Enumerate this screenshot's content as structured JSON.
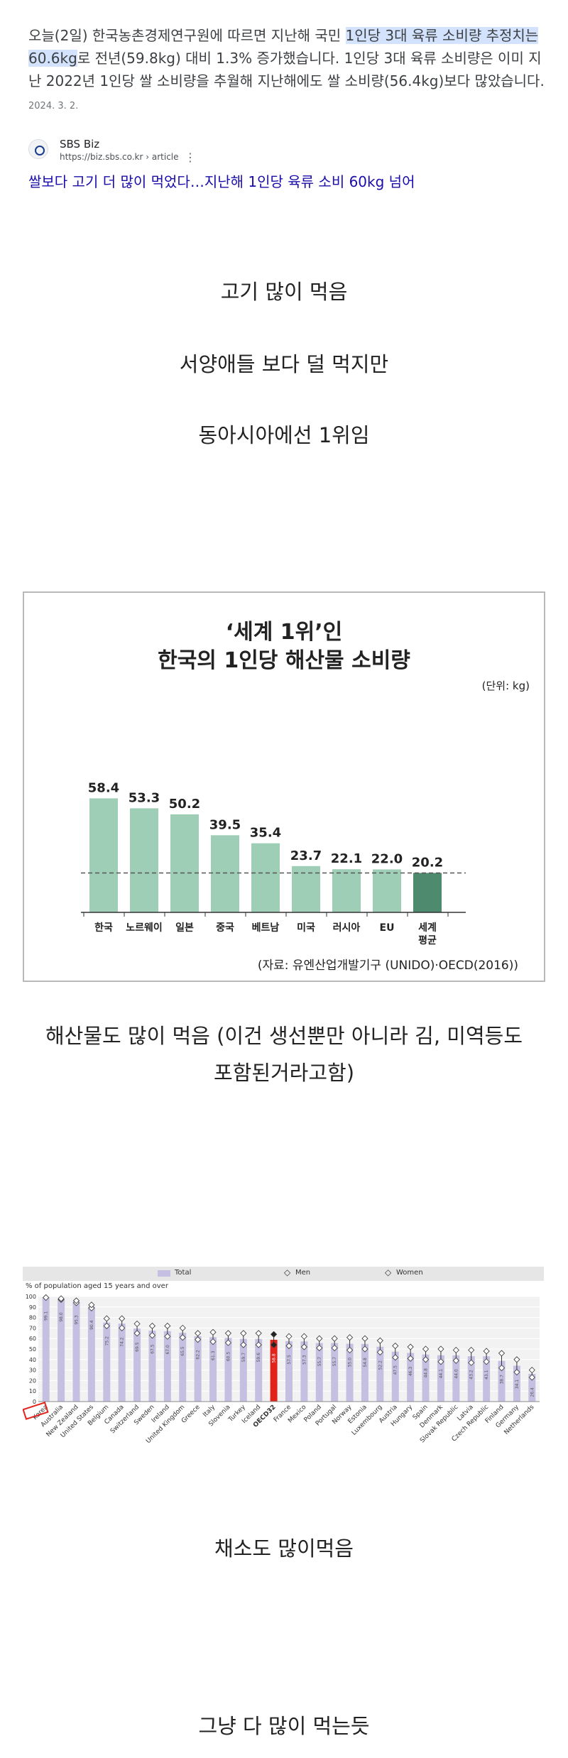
{
  "snippet": {
    "text_before": "오늘(2일) 한국농촌경제연구원에 따르면 지난해 국민 ",
    "highlight": "1인당 3대 육류 소비량 추정치는 60.6kg",
    "text_after": "로 전년(59.8kg) 대비 1.3% 증가했습니다. 1인당 3대 육류 소비량은 이미 지난 2022년 1인당 쌀 소비량을 추월해 지난해에도 쌀 소비량(56.4kg)보다 많았습니다. ",
    "date": "2024. 3. 2."
  },
  "source": {
    "name": "SBS Biz",
    "url": "https://biz.sbs.co.kr › article",
    "more": "⋮",
    "headline": "쌀보다 고기 더 많이 먹었다…지난해 1인당 육류 소비 60kg 넘어"
  },
  "captions": {
    "c1": "고기 많이 먹음",
    "c2": "서양애들 보다 덜 먹지만",
    "c3": "동아시아에선 1위임",
    "c4_line1": "해산물도 많이 먹음 (이건 생선뿐만 아니라 김, 미역등도",
    "c4_line2": "포함된거라고함)",
    "c5": "채소도 많이먹음",
    "c6": "그냥 다 많이 먹는듯"
  },
  "fish_chart": {
    "title_line1": "‘세계 1위’인",
    "title_line2": "한국의 1인당 해산물 소비량",
    "unit": "(단위: kg)",
    "source": "(자료: 유엔산업개발기구 (UNIDO)·OECD(2016))"
  },
  "veg_chart": {
    "legend_total": "Total",
    "legend_men": "Men",
    "legend_women": "Women",
    "y_unit": "% of population aged 15 years and over"
  },
  "chart_data": [
    {
      "type": "bar",
      "title": "‘세계 1위’인 한국의 1인당 해산물 소비량",
      "ylabel": "(단위: kg)",
      "categories": [
        "한국",
        "노르웨이",
        "일본",
        "중국",
        "베트남",
        "미국",
        "러시아",
        "EU",
        "세계 평균"
      ],
      "values": [
        58.4,
        53.3,
        50.2,
        39.5,
        35.4,
        23.7,
        22.1,
        22.0,
        20.2
      ],
      "highlight_category": "세계 평균",
      "colors": {
        "bar": "#9ecfb6",
        "highlight": "#4e8a6e"
      },
      "reference_line": 20.2,
      "grid": false
    },
    {
      "type": "bar",
      "categories": [
        "Korea",
        "Australia",
        "New Zealand",
        "United States",
        "Belgium",
        "Canada",
        "Switzerland",
        "Sweden",
        "Ireland",
        "United Kingdom",
        "Greece",
        "Italy",
        "Slovenia",
        "Turkey",
        "Iceland",
        "OECD32",
        "France",
        "Mexico",
        "Poland",
        "Portugal",
        "Norway",
        "Estonia",
        "Luxembourg",
        "Austria",
        "Hungary",
        "Spain",
        "Denmark",
        "Slovak Republic",
        "Latvia",
        "Czech Republic",
        "Finland",
        "Germany",
        "Netherlands"
      ],
      "series": [
        {
          "name": "Total",
          "values": [
            99.1,
            98.0,
            95.3,
            90.4,
            75.2,
            74.2,
            69.5,
            67.5,
            67.0,
            65.5,
            62.2,
            61.3,
            60.5,
            59.7,
            59.6,
            58.8,
            57.5,
            57.3,
            55.7,
            55.7,
            55.0,
            54.8,
            52.2,
            47.5,
            46.3,
            44.8,
            44.1,
            44.0,
            43.2,
            43.1,
            38.7,
            34.1,
            26.4
          ]
        },
        {
          "name": "Men",
          "values": [
            99,
            97,
            94,
            89,
            72,
            70,
            65,
            63,
            62,
            61,
            59,
            57,
            56,
            54,
            54,
            54,
            53,
            52,
            51,
            51,
            49,
            50,
            47,
            42,
            41,
            40,
            38,
            39,
            37,
            38,
            32,
            28,
            23
          ]
        },
        {
          "name": "Women",
          "values": [
            99,
            98,
            96,
            92,
            79,
            79,
            74,
            72,
            72,
            70,
            65,
            66,
            65,
            65,
            65,
            64,
            62,
            62,
            60,
            60,
            61,
            60,
            58,
            53,
            52,
            50,
            50,
            49,
            49,
            48,
            46,
            40,
            30
          ]
        }
      ],
      "highlight_category": "OECD32",
      "colors": {
        "bar": "#c5c0e2",
        "highlight": "#e2231a"
      },
      "ylim": [
        0,
        100
      ],
      "yticks": [
        0,
        10,
        20,
        30,
        40,
        50,
        60,
        70,
        80,
        90,
        100
      ],
      "grid": true,
      "legend": "top"
    }
  ]
}
